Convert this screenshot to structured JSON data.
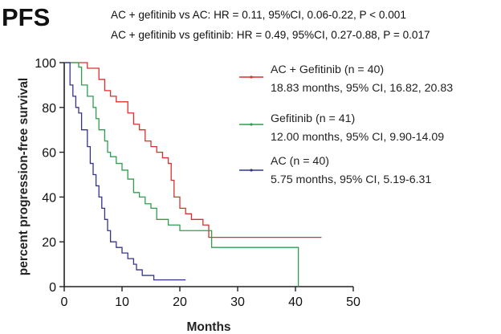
{
  "chart_data": {
    "type": "line",
    "step": true,
    "title": "PFS",
    "annotations": [
      "AC + gefitinib vs AC: HR = 0.11, 95%CI, 0.06-0.22, P < 0.001",
      "AC + gefitinib vs gefitinib: HR = 0.49, 95%CI, 0.27-0.88, P = 0.017"
    ],
    "xlabel": "Months",
    "ylabel": "percent progression-free survival",
    "xlim": [
      0,
      50
    ],
    "ylim": [
      0,
      100
    ],
    "xticks": [
      "0",
      "10",
      "20",
      "30",
      "40",
      "50"
    ],
    "yticks": [
      "0",
      "20",
      "40",
      "60",
      "80",
      "100"
    ],
    "legend_position": "top-right",
    "series": [
      {
        "name": "AC + Gefitinib (n = 40)",
        "detail": "18.83 months, 95% CI, 16.82, 20.83",
        "color": "#d9302c",
        "x": [
          0,
          4,
          6,
          7,
          8,
          9,
          10,
          11,
          12,
          13,
          14,
          15,
          16,
          17,
          18,
          18.5,
          19,
          20,
          21,
          22,
          24,
          25,
          44.5
        ],
        "y": [
          100,
          97.5,
          92.5,
          87.5,
          85,
          82.5,
          82.5,
          77.5,
          72.5,
          70,
          65,
          62.5,
          60,
          57.5,
          55,
          47.5,
          40,
          35,
          32.5,
          30,
          27.5,
          22,
          22
        ]
      },
      {
        "name": "Gefitinib (n = 41)",
        "detail": "12.00 months, 95% CI, 9.90-14.09",
        "color": "#2e9e4f",
        "x": [
          0,
          2.5,
          3,
          4,
          5,
          5.5,
          6,
          7,
          7.5,
          8,
          9,
          10,
          11,
          12,
          13,
          14,
          15,
          16,
          18,
          20,
          25.5,
          40.5,
          40.5
        ],
        "y": [
          100,
          98,
          90,
          85,
          80,
          75,
          70,
          65,
          60,
          58,
          55,
          52,
          48,
          42,
          40,
          37,
          35,
          30,
          27.5,
          25,
          17.5,
          17.5,
          0
        ]
      },
      {
        "name": "AC (n = 40)",
        "detail": "5.75 months, 95% CI, 5.19-6.31",
        "color": "#34348f",
        "x": [
          0,
          1,
          1.5,
          2,
          2.5,
          3,
          4,
          4.5,
          5,
          5.5,
          6,
          6.5,
          7,
          7.5,
          8,
          9,
          10,
          11,
          12,
          12.5,
          13.5,
          15.5,
          21
        ],
        "y": [
          100,
          90,
          85,
          80,
          77.5,
          70,
          62.5,
          55,
          50,
          45,
          40,
          35,
          30,
          25,
          20,
          17.5,
          15,
          12.5,
          10,
          7.5,
          5,
          3,
          3
        ]
      }
    ]
  }
}
